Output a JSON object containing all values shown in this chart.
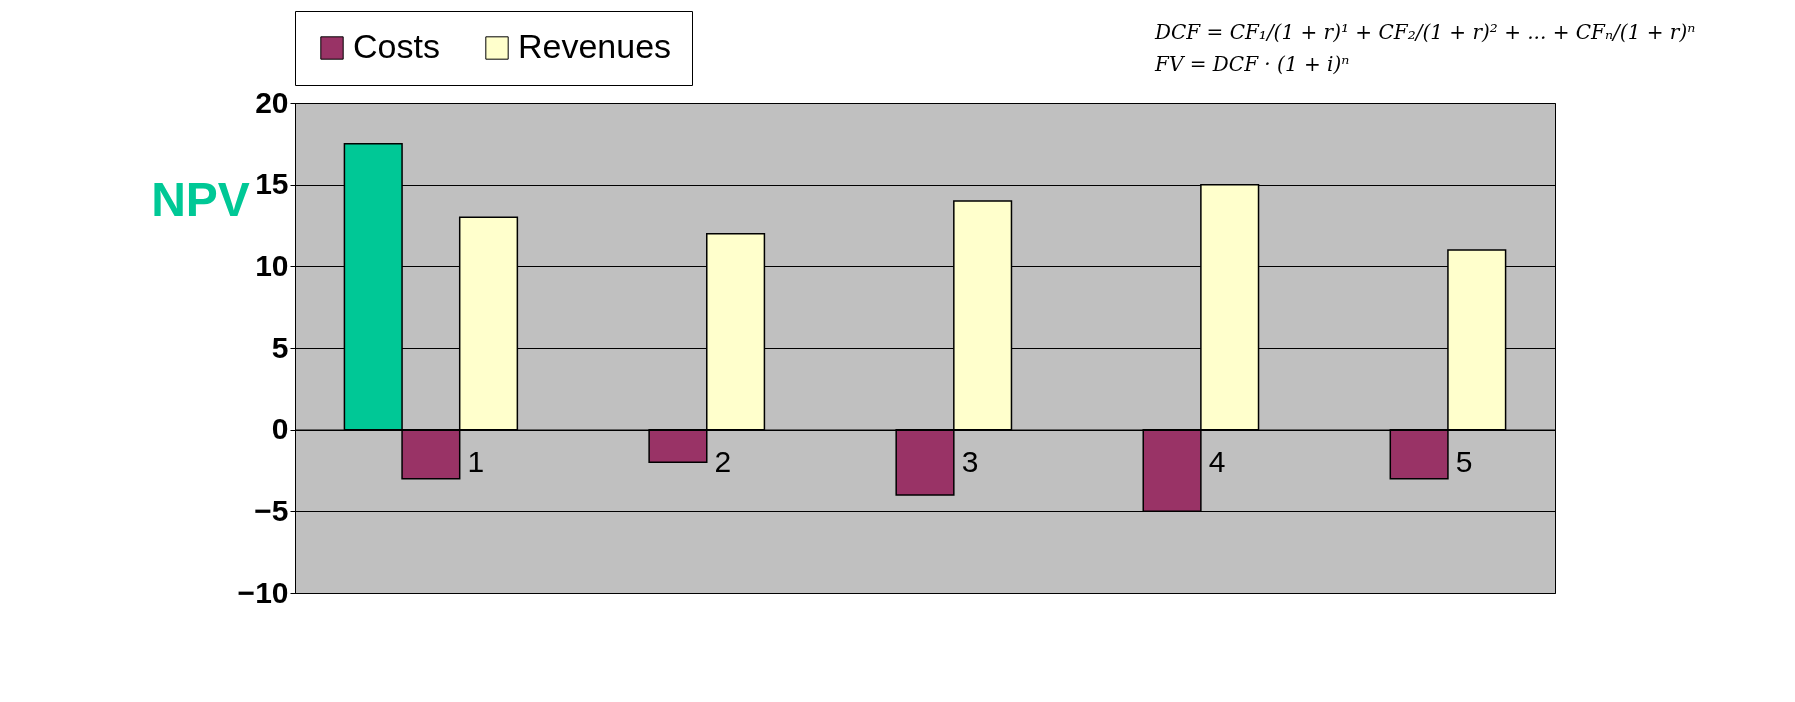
{
  "chart_data": {
    "type": "bar",
    "ylabel": "NPV",
    "categories": [
      "1",
      "2",
      "3",
      "4",
      "5"
    ],
    "series": [
      {
        "color": "#00c896",
        "values": [
          17.5,
          null,
          null,
          null,
          null
        ]
      },
      {
        "name": "Costs",
        "color": "#993366",
        "values": [
          -3,
          -2,
          -4,
          -5,
          -3
        ]
      },
      {
        "name": "Revenues",
        "color": "#ffffcc",
        "values": [
          13,
          12,
          14,
          15,
          11
        ]
      }
    ],
    "ylim": [
      -10,
      20
    ],
    "yticks": [
      -10,
      -5,
      0,
      5,
      10,
      15,
      20
    ],
    "grid": "y",
    "legend": "top",
    "annotations": [
      "DCF = CF₁/(1 + r)¹ + CF₂/(1 + r)² + ... + CFₙ/(1 + r)ⁿ",
      "FV = DCF · (1 + i)ⁿ"
    ]
  }
}
